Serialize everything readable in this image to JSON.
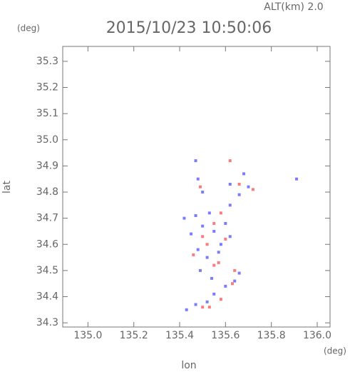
{
  "chart_data": {
    "type": "scatter",
    "title": "2015/10/23 10:50:06",
    "annotations": [
      "ALT(km) 2.0",
      "(deg)",
      "(deg)"
    ],
    "x_label": "lon",
    "y_label": "lat",
    "xlim": [
      134.89,
      136.056
    ],
    "ylim": [
      34.284,
      35.357
    ],
    "xticks": [
      {
        "value": 135,
        "label": "135.0"
      },
      135.2,
      135.4,
      135.6,
      135.8,
      {
        "value": 136,
        "label": "136.0"
      }
    ],
    "yticks": [
      34.3,
      34.4,
      34.5,
      34.6,
      34.7,
      34.8,
      34.9,
      {
        "value": 35,
        "label": "35.0"
      },
      35.1,
      35.2,
      35.3
    ],
    "series": [
      {
        "color": "#7b7bff",
        "x": [
          135.43,
          135.47,
          135.52,
          135.55,
          135.6,
          135.64,
          135.66,
          135.54,
          135.49,
          135.52,
          135.48,
          135.58,
          135.62,
          135.55,
          135.5,
          135.45,
          135.6,
          135.53,
          135.47,
          135.62,
          135.66,
          135.7,
          135.68,
          135.62,
          135.48,
          135.5,
          135.47,
          135.91,
          135.42,
          135.57
        ],
        "values": [
          34.35,
          34.37,
          34.38,
          34.41,
          34.44,
          34.46,
          34.49,
          34.47,
          34.5,
          34.55,
          34.58,
          34.6,
          34.63,
          34.65,
          34.67,
          34.64,
          34.68,
          34.72,
          34.71,
          34.75,
          34.79,
          34.82,
          34.87,
          34.83,
          34.85,
          34.8,
          34.92,
          34.85,
          34.7,
          34.57
        ]
      },
      {
        "color": "#ff7b7b",
        "x": [
          135.5,
          135.53,
          135.58,
          135.63,
          135.55,
          135.57,
          135.52,
          135.6,
          135.55,
          135.5,
          135.58,
          135.72,
          135.66,
          135.49,
          135.62,
          135.46,
          135.64
        ],
        "values": [
          34.36,
          34.36,
          34.39,
          34.45,
          34.52,
          34.53,
          34.6,
          34.62,
          34.68,
          34.63,
          34.72,
          34.81,
          34.83,
          34.82,
          34.92,
          34.56,
          34.5
        ]
      }
    ]
  }
}
